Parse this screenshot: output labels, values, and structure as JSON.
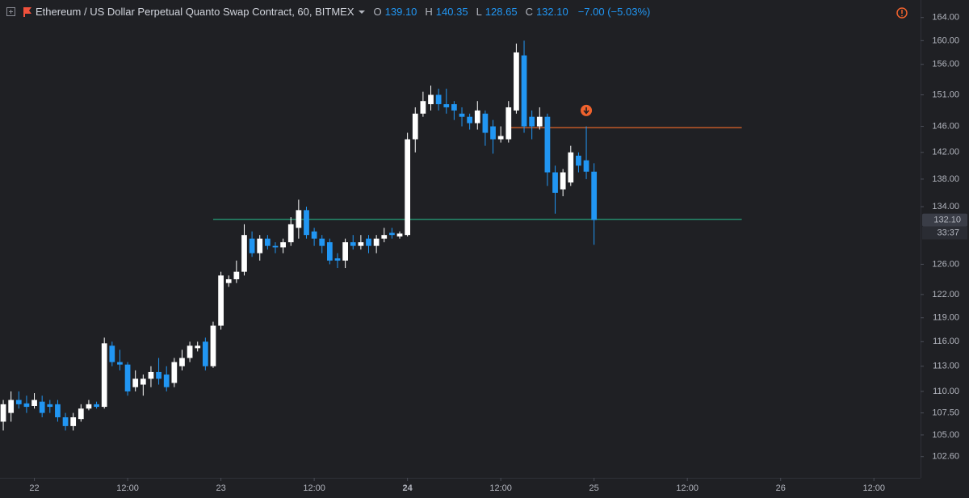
{
  "chart_data": {
    "type": "candlestick",
    "header": {
      "title": "Ethereum / US Dollar Perpetual Quanto Swap Contract, 60, BITMEX",
      "o_label": "O",
      "o": "139.10",
      "h_label": "H",
      "h": "140.35",
      "l_label": "L",
      "l": "128.65",
      "c_label": "C",
      "c": "132.10",
      "change": "−7.00 (−5.03%)"
    },
    "up_color": "#ffffff",
    "down_color": "#2196f3",
    "log_scale": true,
    "open": [
      106.5,
      107.5,
      109,
      108.6,
      108.3,
      108.8,
      108.5,
      108.5,
      107,
      106,
      106.8,
      108,
      108.5,
      108.2,
      115.5,
      113.5,
      113.2,
      110.5,
      110.8,
      111.5,
      112.3,
      112,
      111,
      113,
      114,
      115.2,
      116,
      113,
      118,
      123.5,
      124,
      125,
      129.5,
      127.5,
      129.5,
      128.5,
      128.3,
      129,
      131,
      133.5,
      130.5,
      129.5,
      129,
      126.8,
      126.5,
      129,
      128.5,
      129.5,
      128.5,
      129.5,
      130.3,
      129.8,
      130,
      144,
      148,
      149.5,
      151,
      149.5,
      149.5,
      148,
      147.5,
      146.5,
      148,
      146,
      144,
      144,
      148.5,
      157.5,
      147.5,
      146,
      147.5,
      139,
      136.5,
      137.5,
      141.5,
      140.8,
      139.1
    ],
    "high": [
      109,
      110,
      110,
      109.5,
      109.8,
      109.5,
      109,
      109,
      107.5,
      107.5,
      108.5,
      109,
      108.8,
      116.5,
      116,
      115,
      113.5,
      112.5,
      112,
      113,
      114,
      113,
      114,
      115,
      116,
      116,
      116.5,
      118.5,
      125,
      124.5,
      126.5,
      131.5,
      130.5,
      130,
      130,
      129,
      129.5,
      132.5,
      135,
      134,
      131,
      130,
      129.5,
      127.5,
      129.5,
      130,
      130,
      130,
      130,
      131,
      131,
      130.5,
      145,
      149,
      151.5,
      152.5,
      152,
      152,
      150,
      149,
      148,
      150,
      148.5,
      147,
      146,
      150,
      159.5,
      160,
      148.5,
      149,
      148,
      140,
      139.5,
      143,
      142,
      146,
      140.35
    ],
    "low": [
      105.5,
      106.5,
      108,
      107.5,
      108,
      107,
      107.5,
      106.5,
      105.5,
      105.5,
      106.5,
      107.8,
      108,
      108,
      113,
      112.5,
      109.5,
      110,
      109.5,
      110.5,
      110.8,
      110,
      110.5,
      112.5,
      113.5,
      114.8,
      112.5,
      112.8,
      117.5,
      123,
      123.5,
      124.5,
      127,
      126.5,
      128,
      127.5,
      127.5,
      128.5,
      129.5,
      129.5,
      128.5,
      127.5,
      126,
      125.5,
      125.5,
      128,
      128,
      127.5,
      127.5,
      129,
      129.5,
      129.5,
      129.8,
      142,
      147.5,
      148.5,
      148.5,
      148,
      147,
      146,
      145.5,
      145.5,
      143,
      141.8,
      143.5,
      143.5,
      148,
      145,
      144,
      145.5,
      137,
      133,
      135.5,
      137,
      139,
      138,
      128.65
    ],
    "close": [
      108.5,
      109,
      108.5,
      108.2,
      109,
      107.5,
      108.2,
      107,
      106,
      107,
      108,
      108.5,
      108.2,
      115.8,
      113.5,
      113.2,
      110,
      111.5,
      111.5,
      112.3,
      111.5,
      110.5,
      113.5,
      114,
      115.5,
      115.5,
      113,
      118,
      124.5,
      124,
      125,
      130,
      127.5,
      129.5,
      128.5,
      128.3,
      129,
      131.5,
      133.5,
      130,
      129.5,
      128.5,
      126.5,
      126.5,
      129,
      128.5,
      129,
      128.5,
      129.5,
      130,
      130,
      130.2,
      144,
      148,
      150,
      151,
      149.5,
      149,
      148.5,
      147.5,
      146.5,
      148.5,
      145,
      144,
      144.5,
      149,
      158,
      146,
      146,
      147.5,
      139,
      136,
      139,
      142,
      140,
      139.1,
      132.1
    ],
    "xlim": [
      -0.42,
      118
    ],
    "xticks": [
      {
        "value": 4,
        "label": "22"
      },
      {
        "value": 16,
        "label": "12:00"
      },
      {
        "value": 28,
        "label": "23"
      },
      {
        "value": 40,
        "label": "12:00"
      },
      {
        "value": 52,
        "label": "24"
      },
      {
        "value": 64,
        "label": "12:00"
      },
      {
        "value": 76,
        "label": "25"
      },
      {
        "value": 88,
        "label": "12:00"
      },
      {
        "value": 100,
        "label": "26"
      },
      {
        "value": 112,
        "label": "12:00"
      }
    ],
    "ylim": [
      100.3,
      167.1
    ],
    "yticks": [
      {
        "value": 164,
        "label": "164.00"
      },
      {
        "value": 160,
        "label": "160.00"
      },
      {
        "value": 156,
        "label": "156.00"
      },
      {
        "value": 151,
        "label": "151.00"
      },
      {
        "value": 146,
        "label": "146.00"
      },
      {
        "value": 142,
        "label": "142.00"
      },
      {
        "value": 138,
        "label": "138.00"
      },
      {
        "value": 134,
        "label": "134.00"
      },
      {
        "value": 126,
        "label": "126.00"
      },
      {
        "value": 122,
        "label": "122.00"
      },
      {
        "value": 119,
        "label": "119.00"
      },
      {
        "value": 116,
        "label": "116.00"
      },
      {
        "value": 113,
        "label": "113.00"
      },
      {
        "value": 110,
        "label": "110.00"
      },
      {
        "value": 107.5,
        "label": "107.50"
      },
      {
        "value": 105,
        "label": "105.00"
      },
      {
        "value": 102.6,
        "label": "102.60"
      }
    ],
    "levels": [
      {
        "value": 145.8,
        "color": "#e0652a",
        "from": 65,
        "to": 95
      },
      {
        "value": 132.2,
        "color": "#26a17b",
        "from": 27,
        "to": 95
      }
    ],
    "marker": {
      "index": 75,
      "value": 148.5,
      "color": "#f0622d"
    },
    "last_price_label": "132.10",
    "countdown": "33:37"
  }
}
